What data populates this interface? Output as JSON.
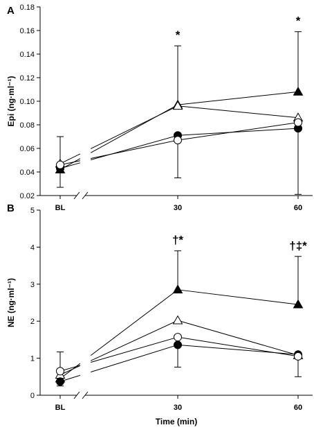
{
  "chart_data": [
    {
      "panel_label": "A",
      "type": "line",
      "ylabel": "Epi (ng·ml⁻¹)",
      "xlabel": "",
      "ylim": [
        0.02,
        0.18
      ],
      "yticks": [
        "0.02",
        "0.04",
        "0.06",
        "0.08",
        "0.10",
        "0.12",
        "0.14",
        "0.16",
        "0.18"
      ],
      "x": [
        "BL",
        "30",
        "60"
      ],
      "series": [
        {
          "marker": "filled-triangle",
          "values": [
            0.042,
            0.097,
            0.108
          ],
          "error_up": [
            0.028,
            0.05,
            0.051
          ],
          "error_down": [
            0.0,
            0.0,
            0.0
          ]
        },
        {
          "marker": "open-triangle",
          "values": [
            0.047,
            0.096,
            0.086
          ],
          "error_up": [
            0.0,
            0.0,
            0.0
          ],
          "error_down": [
            0.0,
            0.0,
            0.0
          ]
        },
        {
          "marker": "filled-circle",
          "values": [
            0.043,
            0.071,
            0.077
          ],
          "error_up": [
            0.0,
            0.0,
            0.0
          ],
          "error_down": [
            0.016,
            0.0,
            0.056
          ]
        },
        {
          "marker": "open-circle",
          "values": [
            0.046,
            0.067,
            0.082
          ],
          "error_up": [
            0.0,
            0.0,
            0.0
          ],
          "error_down": [
            0.0,
            0.032,
            0.0
          ]
        }
      ],
      "annotations": [
        {
          "x": "30",
          "text": "*"
        },
        {
          "x": "60",
          "text": "*"
        }
      ]
    },
    {
      "panel_label": "B",
      "type": "line",
      "ylabel": "NE (ng·ml⁻¹)",
      "xlabel": "Time (min)",
      "ylim": [
        0,
        5
      ],
      "yticks": [
        "0",
        "1",
        "2",
        "3",
        "4",
        "5"
      ],
      "x": [
        "BL",
        "30",
        "60"
      ],
      "series": [
        {
          "marker": "filled-triangle",
          "values": [
            0.45,
            2.85,
            2.45
          ],
          "error_up": [
            0.0,
            1.05,
            1.3
          ],
          "error_down": [
            0.0,
            0.0,
            0.0
          ]
        },
        {
          "marker": "open-triangle",
          "values": [
            0.55,
            2.02,
            1.08
          ],
          "error_up": [
            0.0,
            0.0,
            0.0
          ],
          "error_down": [
            0.0,
            0.0,
            0.0
          ]
        },
        {
          "marker": "filled-circle",
          "values": [
            0.37,
            1.36,
            1.1
          ],
          "error_up": [
            0.0,
            0.0,
            0.0
          ],
          "error_down": [
            0.12,
            0.6,
            0.6
          ]
        },
        {
          "marker": "open-circle",
          "values": [
            0.65,
            1.57,
            1.05
          ],
          "error_up": [
            0.52,
            0.0,
            0.0
          ],
          "error_down": [
            0.0,
            0.0,
            0.0
          ]
        }
      ],
      "annotations": [
        {
          "x": "30",
          "text": "†*"
        },
        {
          "x": "60",
          "text": "†‡*"
        }
      ]
    }
  ]
}
